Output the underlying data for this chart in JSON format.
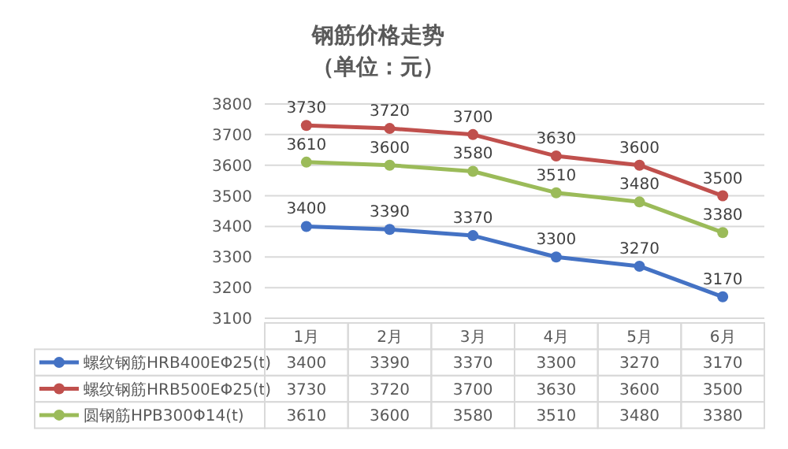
{
  "chart_data": {
    "type": "line",
    "title": "钢筋价格走势",
    "subtitle": "（单位：元）",
    "categories": [
      "1月",
      "2月",
      "3月",
      "4月",
      "5月",
      "6月"
    ],
    "series": [
      {
        "name": "螺纹钢筋HRB400EΦ25(t)",
        "color": "#4472c4",
        "values": [
          3400,
          3390,
          3370,
          3300,
          3270,
          3170
        ]
      },
      {
        "name": "螺纹钢筋HRB500EΦ25(t)",
        "color": "#c0504d",
        "values": [
          3730,
          3720,
          3700,
          3630,
          3600,
          3500
        ]
      },
      {
        "name": "圆钢筋HPB300Φ14(t)",
        "color": "#9bbb59",
        "values": [
          3610,
          3600,
          3580,
          3510,
          3480,
          3380
        ]
      }
    ],
    "ylim": [
      3100,
      3800
    ],
    "yticks": [
      3100,
      3200,
      3300,
      3400,
      3500,
      3600,
      3700,
      3800
    ],
    "annotations": [
      {
        "text": "3400",
        "x": "1月",
        "y": 3400
      },
      {
        "text": "3390",
        "x": "2月",
        "y": 3390
      },
      {
        "text": "3370",
        "x": "3月",
        "y": 3370
      },
      {
        "text": "3300",
        "x": "4月",
        "y": 3300
      },
      {
        "text": "3270",
        "x": "5月",
        "y": 3270
      },
      {
        "text": "3170",
        "x": "6月",
        "y": 3170
      },
      {
        "text": "3730",
        "x": "1月",
        "y": 3730
      },
      {
        "text": "3720",
        "x": "2月",
        "y": 3720
      },
      {
        "text": "3700",
        "x": "3月",
        "y": 3700
      },
      {
        "text": "3630",
        "x": "4月",
        "y": 3630
      },
      {
        "text": "3600",
        "x": "5月",
        "y": 3600
      },
      {
        "text": "3500",
        "x": "6月",
        "y": 3500
      },
      {
        "text": "3610",
        "x": "1月",
        "y": 3610
      },
      {
        "text": "3600",
        "x": "2月",
        "y": 3600
      },
      {
        "text": "3580",
        "x": "3月",
        "y": 3580
      },
      {
        "text": "3510",
        "x": "4月",
        "y": 3510
      },
      {
        "text": "3480",
        "x": "5月",
        "y": 3480
      },
      {
        "text": "3380",
        "x": "6月",
        "y": 3380
      }
    ],
    "grid": "y",
    "legend": "bottom",
    "marker": "circle",
    "line_style": "solid",
    "data_labels": true
  }
}
